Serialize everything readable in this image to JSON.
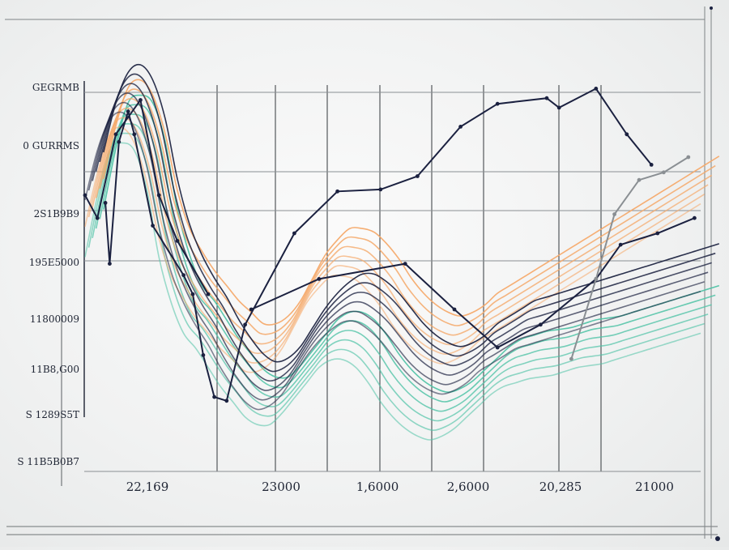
{
  "chart_data": {
    "type": "line",
    "title": "",
    "xlabel": "",
    "ylabel": "",
    "grid": true,
    "legend": "none",
    "x_tick_labels": [
      "22,169",
      "23000",
      "1,6000",
      "2,6000",
      "20,285",
      "21000"
    ],
    "y_tick_labels": [
      "GEGRMB",
      "0 GURRMS",
      "2S1B9B9",
      "195E5000",
      "11800009",
      "11B8,G00",
      "S 1289S5T",
      "S 11B5B0B7"
    ],
    "x": [
      0,
      2,
      4,
      6,
      8,
      10,
      12,
      14,
      16,
      18,
      20,
      22,
      24,
      26,
      28,
      30,
      32,
      34,
      36,
      38,
      40,
      42,
      44,
      46,
      48,
      50,
      52,
      54,
      56,
      58,
      60,
      62,
      64,
      66,
      68,
      70,
      72,
      74,
      76,
      78,
      80,
      82,
      84,
      86,
      88,
      90,
      92,
      94,
      96,
      98,
      100
    ],
    "xlim": [
      0,
      100
    ],
    "ylim": [
      0,
      100
    ],
    "colors": {
      "navy": "#1b2140",
      "teal": "#4fc3a6",
      "orange": "#f5a868",
      "gray": "#8a8f93"
    },
    "series_groups": [
      {
        "color": "#4fc3a6",
        "count": 6,
        "spacing": 2.5,
        "values": [
          60,
          76,
          88,
          90,
          88,
          78,
          60,
          48,
          40,
          36,
          31,
          26,
          22,
          18,
          16,
          16,
          19,
          23,
          27,
          31,
          33,
          33,
          31,
          27,
          22,
          18,
          15,
          13,
          12,
          13,
          15,
          18,
          21,
          24,
          26,
          27,
          28,
          28.5,
          29,
          30,
          31,
          31.5,
          32,
          33,
          34,
          35,
          36,
          37,
          38,
          39,
          40
        ]
      },
      {
        "color": "#f5a868",
        "count": 6,
        "spacing": 2.5,
        "values": [
          68,
          82,
          92,
          94,
          90,
          80,
          65,
          55,
          49,
          44,
          40,
          36,
          33,
          30,
          30,
          32,
          36,
          42,
          48,
          52,
          55,
          55,
          54,
          51,
          47,
          42,
          38,
          35,
          33,
          32,
          33,
          35,
          38,
          40,
          42,
          44,
          46,
          48,
          50,
          52,
          54,
          56,
          58,
          60,
          62,
          64,
          66,
          68,
          70,
          72,
          74
        ]
      },
      {
        "color": "#1b2140",
        "count": 6,
        "spacing": 2.5,
        "values": [
          75,
          88,
          96,
          98,
          94,
          84,
          68,
          56,
          48,
          42,
          37,
          31,
          26,
          22,
          20,
          21,
          24,
          29,
          34,
          38,
          41,
          43,
          43,
          41,
          38,
          34,
          30,
          27,
          25,
          24,
          25,
          27,
          30,
          32,
          34,
          36,
          37,
          38,
          39,
          40,
          41,
          42,
          43,
          44,
          45,
          46,
          47,
          48,
          49,
          50,
          51
        ]
      }
    ],
    "marker_series": [
      {
        "color": "#1b2140",
        "points": [
          [
            3.3,
            68
          ],
          [
            4,
            52
          ],
          [
            5.5,
            84
          ],
          [
            7,
            92
          ],
          [
            8,
            86
          ],
          [
            11,
            62
          ],
          [
            16,
            49
          ],
          [
            17.5,
            44
          ],
          [
            19.2,
            28
          ],
          [
            21,
            17
          ],
          [
            23,
            16
          ],
          [
            26,
            36
          ],
          [
            34,
            60
          ],
          [
            41,
            71
          ],
          [
            48,
            71.5
          ],
          [
            54,
            75
          ],
          [
            61,
            88
          ],
          [
            67,
            94
          ],
          [
            75,
            95.5
          ],
          [
            77,
            93
          ],
          [
            83,
            98
          ],
          [
            88,
            86
          ],
          [
            92,
            78
          ]
        ]
      },
      {
        "color": "#1b2140",
        "points": [
          [
            27,
            40
          ],
          [
            38,
            48
          ],
          [
            52,
            52
          ],
          [
            60,
            40
          ],
          [
            67,
            30
          ],
          [
            74,
            36
          ],
          [
            83,
            48
          ],
          [
            87,
            57
          ],
          [
            93,
            60
          ],
          [
            99,
            64
          ]
        ]
      },
      {
        "color": "#8a8f93",
        "points": [
          [
            79,
            27
          ],
          [
            83,
            48
          ],
          [
            86,
            65
          ],
          [
            90,
            74
          ],
          [
            94,
            76
          ],
          [
            98,
            80
          ]
        ]
      },
      {
        "color": "#1b2140",
        "points": [
          [
            0,
            70
          ],
          [
            2,
            64
          ],
          [
            5,
            86
          ],
          [
            9,
            95
          ],
          [
            12,
            70
          ],
          [
            15,
            58
          ],
          [
            20,
            44
          ]
        ]
      }
    ]
  }
}
